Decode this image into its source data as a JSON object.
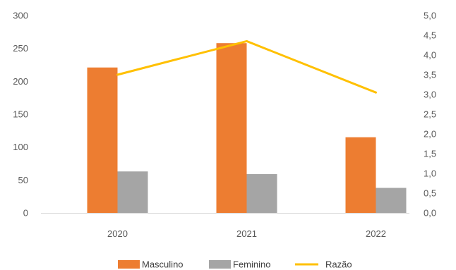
{
  "chart_data": {
    "type": "bar",
    "categories": [
      "2020",
      "2021",
      "2022"
    ],
    "series": [
      {
        "name": "Masculino",
        "type": "bar",
        "axis": "left",
        "color": "#ED7D31",
        "values": [
          221,
          258,
          115
        ]
      },
      {
        "name": "Feminino",
        "type": "bar",
        "axis": "left",
        "color": "#A5A5A5",
        "values": [
          63,
          59,
          38
        ]
      },
      {
        "name": "Razão",
        "type": "line",
        "axis": "right",
        "color": "#FFC000",
        "values": [
          3.5,
          4.35,
          3.05
        ]
      }
    ],
    "y_left": {
      "min": 0,
      "max": 300,
      "ticks": [
        "0",
        "50",
        "100",
        "150",
        "200",
        "250",
        "300"
      ]
    },
    "y_right": {
      "min": 0,
      "max": 5,
      "ticks": [
        "0,0",
        "0,5",
        "1,0",
        "1,5",
        "2,0",
        "2,5",
        "3,0",
        "3,5",
        "4,0",
        "4,5",
        "5,0"
      ]
    },
    "title": "",
    "xlabel": "",
    "ylabel": "",
    "grid": false,
    "legend": "bottom"
  }
}
